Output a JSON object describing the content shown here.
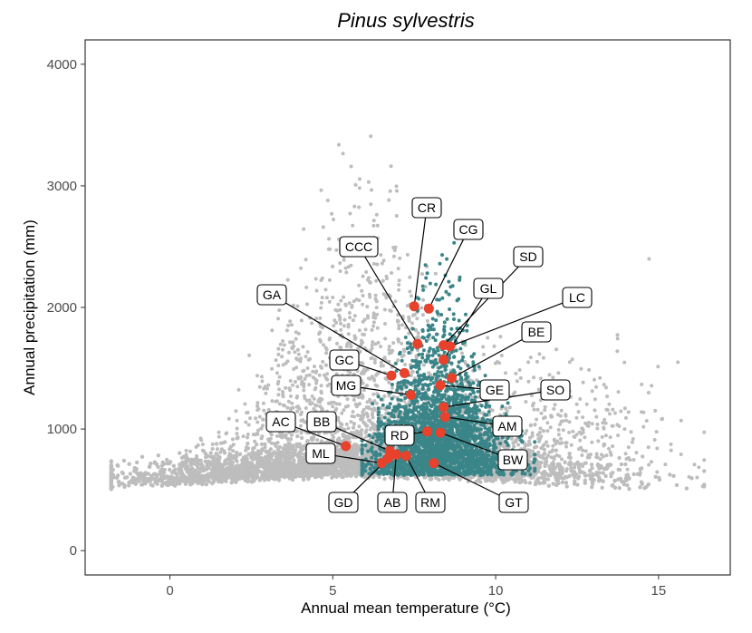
{
  "chart_data": {
    "type": "scatter",
    "title": "Pinus sylvestris",
    "xlabel": "Annual mean temperature (°C)",
    "ylabel": "Annual precipitation (mm)",
    "xlim": [
      -2.6,
      17.2
    ],
    "ylim": [
      -200,
      4200
    ],
    "x_ticks": [
      0,
      5,
      10,
      15
    ],
    "y_ticks": [
      0,
      1000,
      2000,
      3000,
      4000
    ],
    "grid": false,
    "colors": {
      "background_points": "#bdbdbd",
      "species_points": "#3a8588",
      "sites": "#e8412c"
    },
    "sites": [
      {
        "label": "CR",
        "x": 7.5,
        "y": 2010
      },
      {
        "label": "CG",
        "x": 7.95,
        "y": 1990
      },
      {
        "label": "SD",
        "x": 8.4,
        "y": 1690
      },
      {
        "label": "GL",
        "x": 8.4,
        "y": 1570
      },
      {
        "label": "CCC",
        "x": 7.6,
        "y": 1700
      },
      {
        "label": "LC",
        "x": 8.6,
        "y": 1680
      },
      {
        "label": "GA",
        "x": 7.2,
        "y": 1460
      },
      {
        "label": "BE",
        "x": 8.65,
        "y": 1420
      },
      {
        "label": "GC",
        "x": 6.8,
        "y": 1440
      },
      {
        "label": "MG",
        "x": 7.4,
        "y": 1280
      },
      {
        "label": "GE",
        "x": 8.3,
        "y": 1360
      },
      {
        "label": "SO",
        "x": 8.4,
        "y": 1180
      },
      {
        "label": "AC",
        "x": 5.4,
        "y": 860
      },
      {
        "label": "BB",
        "x": 6.75,
        "y": 820
      },
      {
        "label": "RD",
        "x": 7.9,
        "y": 980
      },
      {
        "label": "AM",
        "x": 8.45,
        "y": 1100
      },
      {
        "label": "ML",
        "x": 6.5,
        "y": 720
      },
      {
        "label": "BW",
        "x": 8.3,
        "y": 970
      },
      {
        "label": "GD",
        "x": 6.7,
        "y": 760
      },
      {
        "label": "AB",
        "x": 6.95,
        "y": 790
      },
      {
        "label": "RM",
        "x": 7.25,
        "y": 780
      },
      {
        "label": "GT",
        "x": 8.1,
        "y": 720
      }
    ]
  }
}
